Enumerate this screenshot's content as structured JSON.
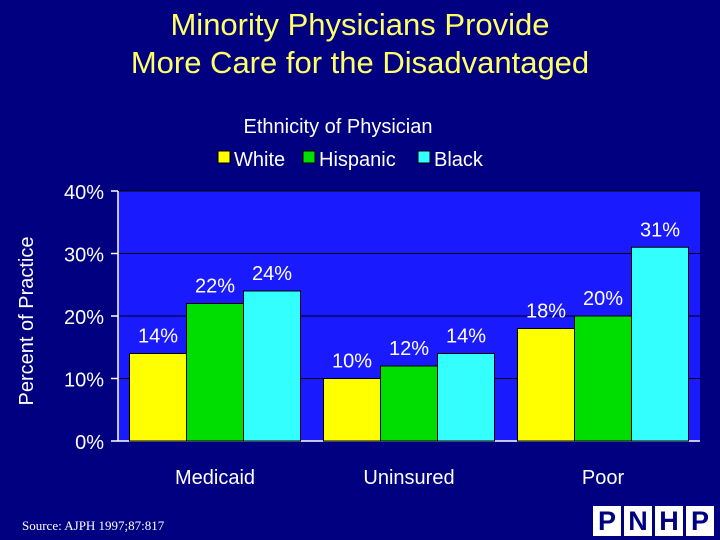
{
  "title": {
    "line1": "Minority Physicians Provide",
    "line2": "More Care for the Disadvantaged"
  },
  "source": "Source: AJPH 1997;87:817",
  "logo": {
    "letters": [
      "P",
      "N",
      "H",
      "P"
    ]
  },
  "colors": {
    "background": "#000080",
    "plot_area": "#1a1aff",
    "title": "#ffff66",
    "White": "#ffff00",
    "Hispanic": "#00dd00",
    "Black": "#33ffff"
  },
  "chart_data": {
    "type": "bar",
    "legend_title": "Ethnicity of Physician",
    "categories": [
      "Medicaid",
      "Uninsured",
      "Poor"
    ],
    "series": [
      {
        "name": "White",
        "values": [
          14,
          10,
          18
        ],
        "labels": [
          "14%",
          "10%",
          "18%"
        ]
      },
      {
        "name": "Hispanic",
        "values": [
          22,
          12,
          20
        ],
        "labels": [
          "22%",
          "12%",
          "20%"
        ]
      },
      {
        "name": "Black",
        "values": [
          24,
          14,
          31
        ],
        "labels": [
          "24%",
          "14%",
          "31%"
        ]
      }
    ],
    "ylabel": "Percent of Practice",
    "ylim": [
      0,
      40
    ],
    "yticks": [
      0,
      10,
      20,
      30,
      40
    ],
    "ytick_labels": [
      "0%",
      "10%",
      "20%",
      "30%",
      "40%"
    ],
    "legend_position": "top-center"
  }
}
